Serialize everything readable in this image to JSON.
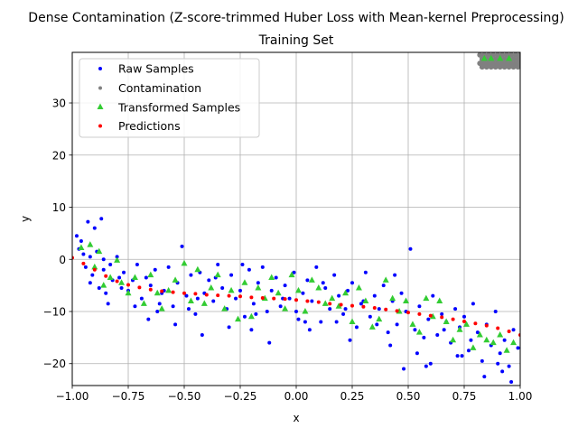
{
  "chart_data": {
    "type": "scatter",
    "title_line1": "Dense Contamination (Z-score-trimmed Huber Loss with Mean-kernel Preprocessing)",
    "title_line2": "Training Set",
    "xlabel": "x",
    "ylabel": "y",
    "xlim": [
      -1.0,
      1.0
    ],
    "ylim": [
      -24.2,
      39.7
    ],
    "grid": true,
    "legend_position": "upper-left",
    "xticks": [
      -1.0,
      -0.75,
      -0.5,
      -0.25,
      0.0,
      0.25,
      0.5,
      0.75,
      1.0
    ],
    "xtick_labels": [
      "−1.00",
      "−0.75",
      "−0.50",
      "−0.25",
      "0.00",
      "0.25",
      "0.50",
      "0.75",
      "1.00"
    ],
    "yticks": [
      -20,
      -10,
      0,
      10,
      20,
      30
    ],
    "ytick_labels": [
      "−20",
      "−10",
      "0",
      "10",
      "20",
      "30"
    ],
    "series": [
      {
        "name": "Raw Samples",
        "marker": "dot",
        "color": "#0000ff",
        "x": [
          -0.98,
          -0.97,
          -0.95,
          -0.94,
          -0.93,
          -0.92,
          -0.91,
          -0.9,
          -0.88,
          -0.87,
          -0.86,
          -0.85,
          -0.83,
          -0.82,
          -0.8,
          -0.79,
          -0.77,
          -0.75,
          -0.73,
          -0.71,
          -0.69,
          -0.67,
          -0.65,
          -0.63,
          -0.61,
          -0.59,
          -0.57,
          -0.55,
          -0.53,
          -0.51,
          -0.49,
          -0.47,
          -0.45,
          -0.43,
          -0.41,
          -0.39,
          -0.37,
          -0.35,
          -0.33,
          -0.31,
          -0.29,
          -0.27,
          -0.25,
          -0.23,
          -0.21,
          -0.19,
          -0.17,
          -0.15,
          -0.13,
          -0.11,
          -0.09,
          -0.07,
          -0.05,
          -0.03,
          -0.01,
          0.01,
          0.03,
          0.05,
          0.07,
          0.09,
          0.11,
          0.13,
          0.15,
          0.17,
          0.19,
          0.21,
          0.23,
          0.25,
          0.27,
          0.29,
          0.31,
          0.33,
          0.35,
          0.37,
          0.39,
          0.41,
          0.43,
          0.45,
          0.47,
          0.49,
          0.51,
          0.53,
          0.55,
          0.57,
          0.59,
          0.61,
          0.63,
          0.65,
          0.67,
          0.69,
          0.71,
          0.73,
          0.75,
          0.77,
          0.79,
          0.81,
          0.83,
          0.85,
          0.87,
          0.89,
          0.91,
          0.93,
          0.95,
          0.97,
          0.99,
          -0.96,
          -0.92,
          -0.89,
          -0.84,
          -0.78,
          -0.72,
          -0.66,
          -0.6,
          -0.54,
          -0.48,
          -0.42,
          -0.36,
          -0.3,
          -0.24,
          -0.18,
          -0.12,
          -0.06,
          0.0,
          0.06,
          0.12,
          0.18,
          0.24,
          0.3,
          0.36,
          0.42,
          0.48,
          0.54,
          0.6,
          0.66,
          0.72,
          0.78,
          0.84,
          0.9,
          0.96,
          -0.86,
          -0.62,
          -0.44,
          -0.2,
          0.04,
          0.22,
          0.44,
          0.58,
          0.74,
          0.92
        ],
        "y": [
          4.5,
          2.0,
          1.0,
          -1.5,
          7.2,
          0.5,
          -3.0,
          6.0,
          -5.5,
          7.8,
          -2.0,
          -6.5,
          -1.0,
          -4.0,
          0.5,
          -3.5,
          -2.5,
          -6.0,
          -4.0,
          -1.0,
          -7.5,
          -3.5,
          -5.0,
          -2.0,
          -8.5,
          -6.0,
          -1.5,
          -9.0,
          -4.5,
          2.5,
          -7.0,
          -3.0,
          -10.5,
          -2.5,
          -6.5,
          -4.0,
          -8.0,
          -1.0,
          -5.5,
          -9.5,
          -3.0,
          -7.5,
          -6.0,
          -11.0,
          -2.0,
          -8.5,
          -4.5,
          -1.5,
          -10.0,
          -6.0,
          -3.5,
          -9.0,
          -5.0,
          -7.5,
          -2.5,
          -11.5,
          -6.5,
          -4.0,
          -8.0,
          -1.5,
          -12.0,
          -5.5,
          -9.5,
          -3.0,
          -7.0,
          -10.5,
          -6.0,
          -4.5,
          -13.0,
          -8.5,
          -2.5,
          -11.0,
          -7.0,
          -9.5,
          -5.0,
          -14.0,
          -8.0,
          -12.5,
          -6.5,
          -10.0,
          2.0,
          -13.5,
          -9.0,
          -15.0,
          -11.5,
          -7.0,
          -14.5,
          -10.5,
          -12.0,
          -16.0,
          -9.5,
          -13.0,
          -11.0,
          -17.5,
          -8.5,
          -14.0,
          -19.5,
          -12.5,
          -16.5,
          -10.0,
          -18.0,
          -15.5,
          -20.5,
          -13.5,
          -17.0,
          3.5,
          -4.5,
          1.5,
          -8.5,
          -5.5,
          -9.0,
          -11.5,
          -6.5,
          -12.5,
          -9.5,
          -14.5,
          -3.5,
          -13.0,
          -1.0,
          -10.5,
          -16.0,
          -7.5,
          -10.0,
          -13.5,
          -4.5,
          -12.0,
          -15.5,
          -8.0,
          -12.5,
          -16.5,
          -21.0,
          -18.0,
          -20.0,
          -13.5,
          -18.5,
          -15.5,
          -22.5,
          -20.0,
          -23.5,
          0.0,
          -10.0,
          -7.5,
          -13.5,
          -12.0,
          -9.5,
          -3.0,
          -20.5,
          -18.5,
          -21.5
        ]
      },
      {
        "name": "Contamination",
        "marker": "dot",
        "color": "#808080",
        "x": [
          0.82,
          0.84,
          0.86,
          0.88,
          0.9,
          0.92,
          0.94,
          0.96,
          0.98,
          1.0,
          0.83,
          0.85,
          0.87,
          0.89,
          0.91,
          0.93,
          0.95,
          0.97,
          0.99,
          0.82,
          0.84,
          0.86,
          0.88,
          0.9,
          0.92,
          0.94,
          0.96,
          0.98,
          1.0,
          0.83,
          0.85,
          0.87,
          0.89,
          0.91,
          0.93,
          0.95,
          0.97,
          0.99
        ],
        "y": [
          39.2,
          39.2,
          39.2,
          39.2,
          39.2,
          39.2,
          39.2,
          39.2,
          39.2,
          39.2,
          38.4,
          38.4,
          38.4,
          38.4,
          38.4,
          38.4,
          38.4,
          38.4,
          38.4,
          37.6,
          37.6,
          37.6,
          37.6,
          37.6,
          37.6,
          37.6,
          37.6,
          37.6,
          37.6,
          36.9,
          36.9,
          36.9,
          36.9,
          36.9,
          36.9,
          36.9,
          36.9,
          36.9
        ]
      },
      {
        "name": "Transformed Samples",
        "marker": "triangle",
        "color": "#33cc33",
        "x": [
          -0.96,
          -0.92,
          -0.9,
          -0.88,
          -0.86,
          -0.83,
          -0.8,
          -0.78,
          -0.75,
          -0.72,
          -0.68,
          -0.65,
          -0.62,
          -0.6,
          -0.57,
          -0.54,
          -0.5,
          -0.47,
          -0.44,
          -0.41,
          -0.38,
          -0.35,
          -0.32,
          -0.29,
          -0.26,
          -0.23,
          -0.2,
          -0.17,
          -0.14,
          -0.11,
          -0.08,
          -0.05,
          -0.02,
          0.01,
          0.04,
          0.07,
          0.1,
          0.13,
          0.16,
          0.19,
          0.22,
          0.25,
          0.28,
          0.31,
          0.34,
          0.37,
          0.4,
          0.43,
          0.46,
          0.49,
          0.52,
          0.55,
          0.58,
          0.61,
          0.64,
          0.67,
          0.7,
          0.73,
          0.76,
          0.79,
          0.82,
          0.85,
          0.88,
          0.91,
          0.94,
          0.97,
          0.84,
          0.87,
          0.91,
          0.95
        ],
        "y": [
          2.2,
          2.8,
          -1.5,
          1.5,
          -5.0,
          -3.5,
          -0.2,
          -4.5,
          -6.5,
          -3.5,
          -8.5,
          -3.0,
          -6.5,
          -9.5,
          -6.0,
          -4.0,
          -0.8,
          -8.0,
          -2.0,
          -8.5,
          -5.5,
          -3.0,
          -9.5,
          -6.0,
          -11.5,
          -4.5,
          -11.0,
          -5.5,
          -7.5,
          -3.5,
          -6.5,
          -9.5,
          -3.0,
          -6.0,
          -10.0,
          -4.0,
          -5.5,
          -8.5,
          -7.5,
          -9.0,
          -6.5,
          -12.0,
          -5.5,
          -8.0,
          -13.0,
          -11.5,
          -4.0,
          -7.5,
          -10.0,
          -8.0,
          -12.5,
          -14.0,
          -7.5,
          -11.0,
          -8.0,
          -12.0,
          -15.5,
          -13.5,
          -12.5,
          -17.0,
          -14.5,
          -15.5,
          -16.0,
          -14.5,
          -17.5,
          -16.0,
          38.5,
          38.5,
          38.5,
          38.5
        ]
      },
      {
        "name": "Predictions",
        "marker": "dot",
        "color": "#ff0000",
        "x": [
          -1.0,
          -0.95,
          -0.9,
          -0.85,
          -0.8,
          -0.75,
          -0.7,
          -0.65,
          -0.6,
          -0.55,
          -0.5,
          -0.45,
          -0.4,
          -0.35,
          -0.3,
          -0.25,
          -0.2,
          -0.15,
          -0.1,
          -0.05,
          0.0,
          0.05,
          0.1,
          0.15,
          0.2,
          0.25,
          0.3,
          0.35,
          0.4,
          0.45,
          0.5,
          0.55,
          0.6,
          0.65,
          0.7,
          0.75,
          0.8,
          0.85,
          0.9,
          0.95,
          1.0
        ],
        "y": [
          0.3,
          -0.8,
          -2.0,
          -3.2,
          -4.2,
          -4.9,
          -5.4,
          -5.8,
          -6.1,
          -6.3,
          -6.5,
          -6.6,
          -6.8,
          -6.9,
          -7.0,
          -7.1,
          -7.3,
          -7.4,
          -7.5,
          -7.6,
          -7.8,
          -8.0,
          -8.2,
          -8.5,
          -8.7,
          -8.9,
          -9.1,
          -9.3,
          -9.6,
          -9.9,
          -10.2,
          -10.5,
          -10.8,
          -11.1,
          -11.5,
          -11.9,
          -12.3,
          -12.7,
          -13.2,
          -13.8,
          -14.5
        ]
      }
    ]
  }
}
